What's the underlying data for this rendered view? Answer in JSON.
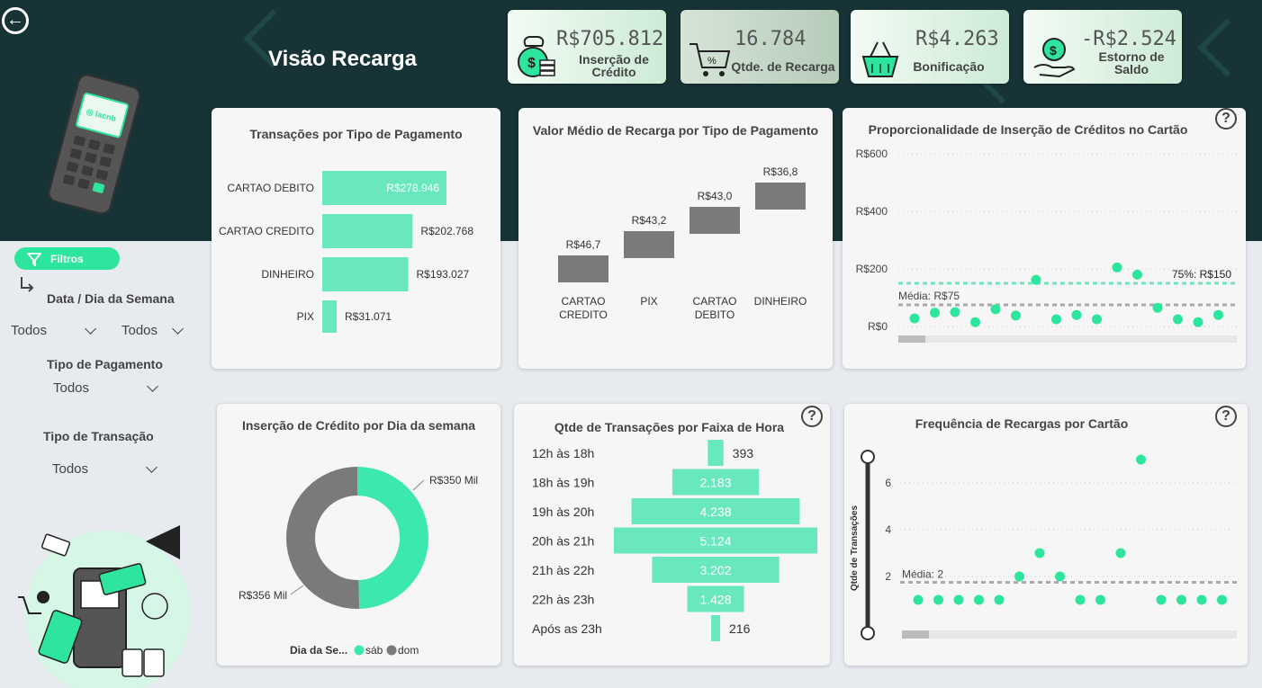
{
  "page": {
    "title": "Visão Recarga",
    "back_icon": "arrow-left-circle-icon"
  },
  "kpis": [
    {
      "value": "R$705.812",
      "label": "Inserção de Crédito",
      "icon": "money-bag-icon"
    },
    {
      "value": "16.784",
      "label": "Qtde. de Recarga",
      "icon": "shopping-cart-icon"
    },
    {
      "value": "R$4.263",
      "label": "Bonificação",
      "icon": "basket-bonus-icon"
    },
    {
      "value": "-R$2.524",
      "label": "Estorno de Saldo",
      "icon": "refund-hand-icon"
    }
  ],
  "filters": {
    "button_label": "Filtros",
    "date_title": "Data / Dia da Semana",
    "date_value": "Todos",
    "weekday_value": "Todos",
    "payment_title": "Tipo de Pagamento",
    "payment_value": "Todos",
    "transaction_title": "Tipo de Transação",
    "transaction_value": "Todos"
  },
  "colors": {
    "accent": "#2ee59d",
    "bar": "#69e8bb",
    "gray": "#7a7a7a",
    "dark": "#173336"
  },
  "chart_data": [
    {
      "id": "payment",
      "type": "bar",
      "title": "Transações por Tipo de Pagamento",
      "categories": [
        "CARTAO DEBITO",
        "CARTAO CREDITO",
        "DINHEIRO",
        "PIX"
      ],
      "values": [
        278946,
        202768,
        193027,
        31071
      ],
      "labels": [
        "R$278.946",
        "R$202.768",
        "R$193.027",
        "R$31.071"
      ]
    },
    {
      "id": "average",
      "type": "bar",
      "title": "Valor Médio de Recarga por Tipo de Pagamento",
      "categories": [
        "CARTAO CREDITO",
        "PIX",
        "CARTAO DEBITO",
        "DINHEIRO"
      ],
      "values": [
        46.7,
        43.2,
        43.0,
        36.8
      ],
      "labels": [
        "R$46,7",
        "R$43,2",
        "R$43,0",
        "R$36,8"
      ]
    },
    {
      "id": "proportion",
      "type": "scatter",
      "title": "Proporcionalidade de Inserção de Créditos no Cartão",
      "y_ticks": [
        "R$600",
        "R$400",
        "R$200",
        "R$0"
      ],
      "y_tick_values": [
        600,
        400,
        200,
        0
      ],
      "ylim": [
        0,
        600
      ],
      "values": [
        28,
        48,
        50,
        15,
        60,
        38,
        162,
        25,
        40,
        25,
        205,
        180,
        65,
        25,
        15,
        40
      ],
      "reference_lines": [
        {
          "label": "75%: R$150",
          "value": 150,
          "color": "#6ee8b9"
        },
        {
          "label": "Média: R$75",
          "value": 75,
          "color": "#aaaaaa"
        }
      ]
    },
    {
      "id": "weekday",
      "type": "pie",
      "title": "Inserção de Crédito por Dia da semana",
      "legend_title": "Dia da Se...",
      "slices": [
        {
          "name": "sáb",
          "value": 350,
          "label": "R$350 Mil",
          "color": "#3de8b0"
        },
        {
          "name": "dom",
          "value": 356,
          "label": "R$356 Mil",
          "color": "#7a7a7a"
        }
      ]
    },
    {
      "id": "hours",
      "type": "bar",
      "title": "Qtde de Transações por Faixa de Hora",
      "categories": [
        "12h às 18h",
        "18h às 19h",
        "19h às 20h",
        "20h às 21h",
        "21h às 22h",
        "22h às 23h",
        "Após as 23h"
      ],
      "values": [
        393,
        2183,
        4238,
        5124,
        3202,
        1428,
        216
      ],
      "labels": [
        "393",
        "2.183",
        "4.238",
        "5.124",
        "3.202",
        "1.428",
        "216"
      ]
    },
    {
      "id": "frequency",
      "type": "scatter",
      "title": "Frequência de Recargas por Cartão",
      "ylabel": "Qtde de Transações",
      "y_ticks": [
        "6",
        "4",
        "2"
      ],
      "y_tick_values": [
        6,
        4,
        2
      ],
      "ylim": [
        0,
        7
      ],
      "values": [
        1,
        1,
        1,
        1,
        1,
        2,
        3,
        2,
        1,
        1,
        3,
        7,
        1,
        1,
        1,
        1
      ],
      "reference_lines": [
        {
          "label": "Média: 2",
          "value": 1.75,
          "color": "#aaaaaa"
        }
      ]
    }
  ]
}
